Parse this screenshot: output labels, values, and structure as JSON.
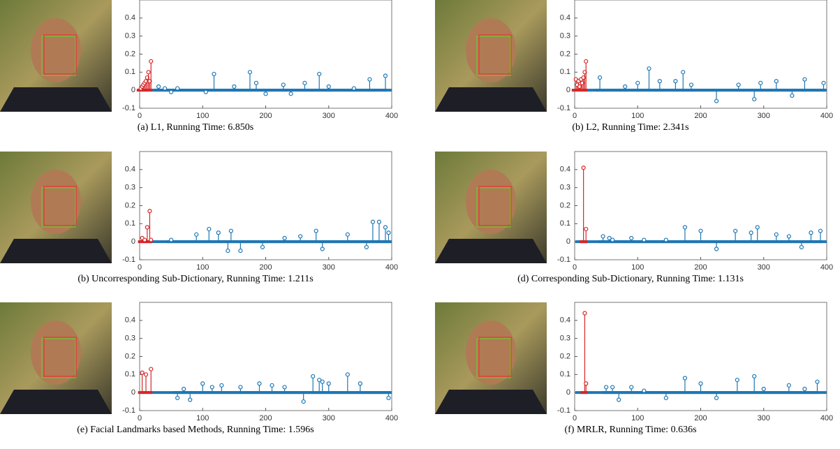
{
  "chart_data": [
    {
      "type": "stem",
      "caption": "(a) L1, Running Time: 6.850s",
      "xlim": [
        0,
        400
      ],
      "xticks": [
        0,
        100,
        200,
        300,
        400
      ],
      "ylim": [
        -0.1,
        0.5
      ],
      "yticks": [
        -0.1,
        0,
        0.1,
        0.2,
        0.3,
        0.4
      ],
      "series": [
        {
          "color": "#d62728",
          "x": [
            2,
            4,
            6,
            8,
            10,
            12,
            14,
            16,
            18
          ],
          "values": [
            0.01,
            0.02,
            0.03,
            0.04,
            0.05,
            0.07,
            0.1,
            0.05,
            0.16
          ]
        },
        {
          "color": "#1f77b4",
          "x": [
            30,
            40,
            50,
            60,
            105,
            118,
            150,
            175,
            185,
            200,
            228,
            240,
            262,
            285,
            300,
            340,
            365,
            390
          ],
          "values": [
            0.02,
            0.01,
            -0.01,
            0.01,
            -0.01,
            0.09,
            0.02,
            0.1,
            0.04,
            -0.02,
            0.03,
            -0.02,
            0.04,
            0.09,
            0.02,
            0.01,
            0.06,
            0.08
          ]
        }
      ]
    },
    {
      "type": "stem",
      "caption": "(b) L2, Running Time: 2.341s",
      "xlim": [
        0,
        400
      ],
      "xticks": [
        0,
        100,
        200,
        300,
        400
      ],
      "ylim": [
        -0.1,
        0.5
      ],
      "yticks": [
        -0.1,
        0,
        0.1,
        0.2,
        0.3,
        0.4
      ],
      "series": [
        {
          "color": "#d62728",
          "x": [
            2,
            4,
            6,
            8,
            10,
            12,
            14,
            16,
            18
          ],
          "values": [
            0.06,
            0.03,
            0.05,
            0.02,
            0.06,
            0.04,
            0.07,
            0.1,
            0.16
          ]
        },
        {
          "color": "#1f77b4",
          "x": [
            40,
            80,
            100,
            118,
            135,
            160,
            172,
            185,
            225,
            260,
            285,
            295,
            320,
            345,
            365,
            395
          ],
          "values": [
            0.07,
            0.02,
            0.04,
            0.12,
            0.05,
            0.05,
            0.1,
            0.03,
            -0.06,
            0.03,
            -0.05,
            0.04,
            0.05,
            -0.03,
            0.06,
            0.04
          ]
        }
      ]
    },
    {
      "type": "stem",
      "caption": "(b) Uncorresponding Sub-Dictionary, Running Time: 1.211s",
      "xlim": [
        0,
        400
      ],
      "xticks": [
        0,
        100,
        200,
        300,
        400
      ],
      "ylim": [
        -0.1,
        0.5
      ],
      "yticks": [
        -0.1,
        0,
        0.1,
        0.2,
        0.3,
        0.4
      ],
      "series": [
        {
          "color": "#d62728",
          "x": [
            4,
            8,
            12,
            16,
            18
          ],
          "values": [
            0.02,
            0.01,
            0.08,
            0.17,
            0.01
          ]
        },
        {
          "color": "#1f77b4",
          "x": [
            50,
            90,
            110,
            125,
            140,
            145,
            160,
            195,
            230,
            255,
            280,
            290,
            330,
            360,
            370,
            380,
            390,
            395
          ],
          "values": [
            0.01,
            0.04,
            0.07,
            0.05,
            -0.05,
            0.06,
            -0.05,
            -0.03,
            0.02,
            0.03,
            0.06,
            -0.04,
            0.04,
            -0.03,
            0.11,
            0.11,
            0.08,
            0.05
          ]
        }
      ]
    },
    {
      "type": "stem",
      "caption": "(d) Corresponding Sub-Dictionary, Running Time: 1.131s",
      "xlim": [
        0,
        400
      ],
      "xticks": [
        0,
        100,
        200,
        300,
        400
      ],
      "ylim": [
        -0.1,
        0.5
      ],
      "yticks": [
        -0.1,
        0,
        0.1,
        0.2,
        0.3,
        0.4
      ],
      "series": [
        {
          "color": "#d62728",
          "x": [
            14,
            18
          ],
          "values": [
            0.41,
            0.07
          ]
        },
        {
          "color": "#1f77b4",
          "x": [
            45,
            55,
            60,
            90,
            110,
            145,
            175,
            200,
            225,
            255,
            280,
            290,
            320,
            340,
            360,
            375,
            390
          ],
          "values": [
            0.03,
            0.02,
            0.01,
            0.02,
            0.01,
            0.01,
            0.08,
            0.06,
            -0.04,
            0.06,
            0.05,
            0.08,
            0.04,
            0.03,
            -0.03,
            0.05,
            0.06
          ]
        }
      ]
    },
    {
      "type": "stem",
      "caption": "(e) Facial Landmarks based Methods, Running Time: 1.596s",
      "xlim": [
        0,
        400
      ],
      "xticks": [
        0,
        100,
        200,
        300,
        400
      ],
      "ylim": [
        -0.1,
        0.5
      ],
      "yticks": [
        -0.1,
        0,
        0.1,
        0.2,
        0.3,
        0.4
      ],
      "series": [
        {
          "color": "#d62728",
          "x": [
            4,
            10,
            18
          ],
          "values": [
            0.11,
            0.1,
            0.13
          ]
        },
        {
          "color": "#1f77b4",
          "x": [
            60,
            70,
            80,
            100,
            115,
            130,
            160,
            190,
            210,
            230,
            260,
            275,
            285,
            290,
            300,
            330,
            350,
            395
          ],
          "values": [
            -0.03,
            0.02,
            -0.04,
            0.05,
            0.03,
            0.04,
            0.03,
            0.05,
            0.04,
            0.03,
            -0.05,
            0.09,
            0.07,
            0.06,
            0.05,
            0.1,
            0.05,
            -0.03
          ]
        }
      ]
    },
    {
      "type": "stem",
      "caption": "(f) MRLR, Running Time: 0.636s",
      "xlim": [
        0,
        400
      ],
      "xticks": [
        0,
        100,
        200,
        300,
        400
      ],
      "ylim": [
        -0.1,
        0.5
      ],
      "yticks": [
        -0.1,
        0,
        0.1,
        0.2,
        0.3,
        0.4
      ],
      "series": [
        {
          "color": "#d62728",
          "x": [
            16,
            18
          ],
          "values": [
            0.44,
            0.05
          ]
        },
        {
          "color": "#1f77b4",
          "x": [
            50,
            60,
            70,
            90,
            110,
            145,
            175,
            200,
            225,
            258,
            285,
            300,
            340,
            365,
            385
          ],
          "values": [
            0.03,
            0.03,
            -0.04,
            0.03,
            0.01,
            -0.03,
            0.08,
            0.05,
            -0.03,
            0.07,
            0.09,
            0.02,
            0.04,
            0.02,
            0.06
          ]
        }
      ]
    }
  ]
}
